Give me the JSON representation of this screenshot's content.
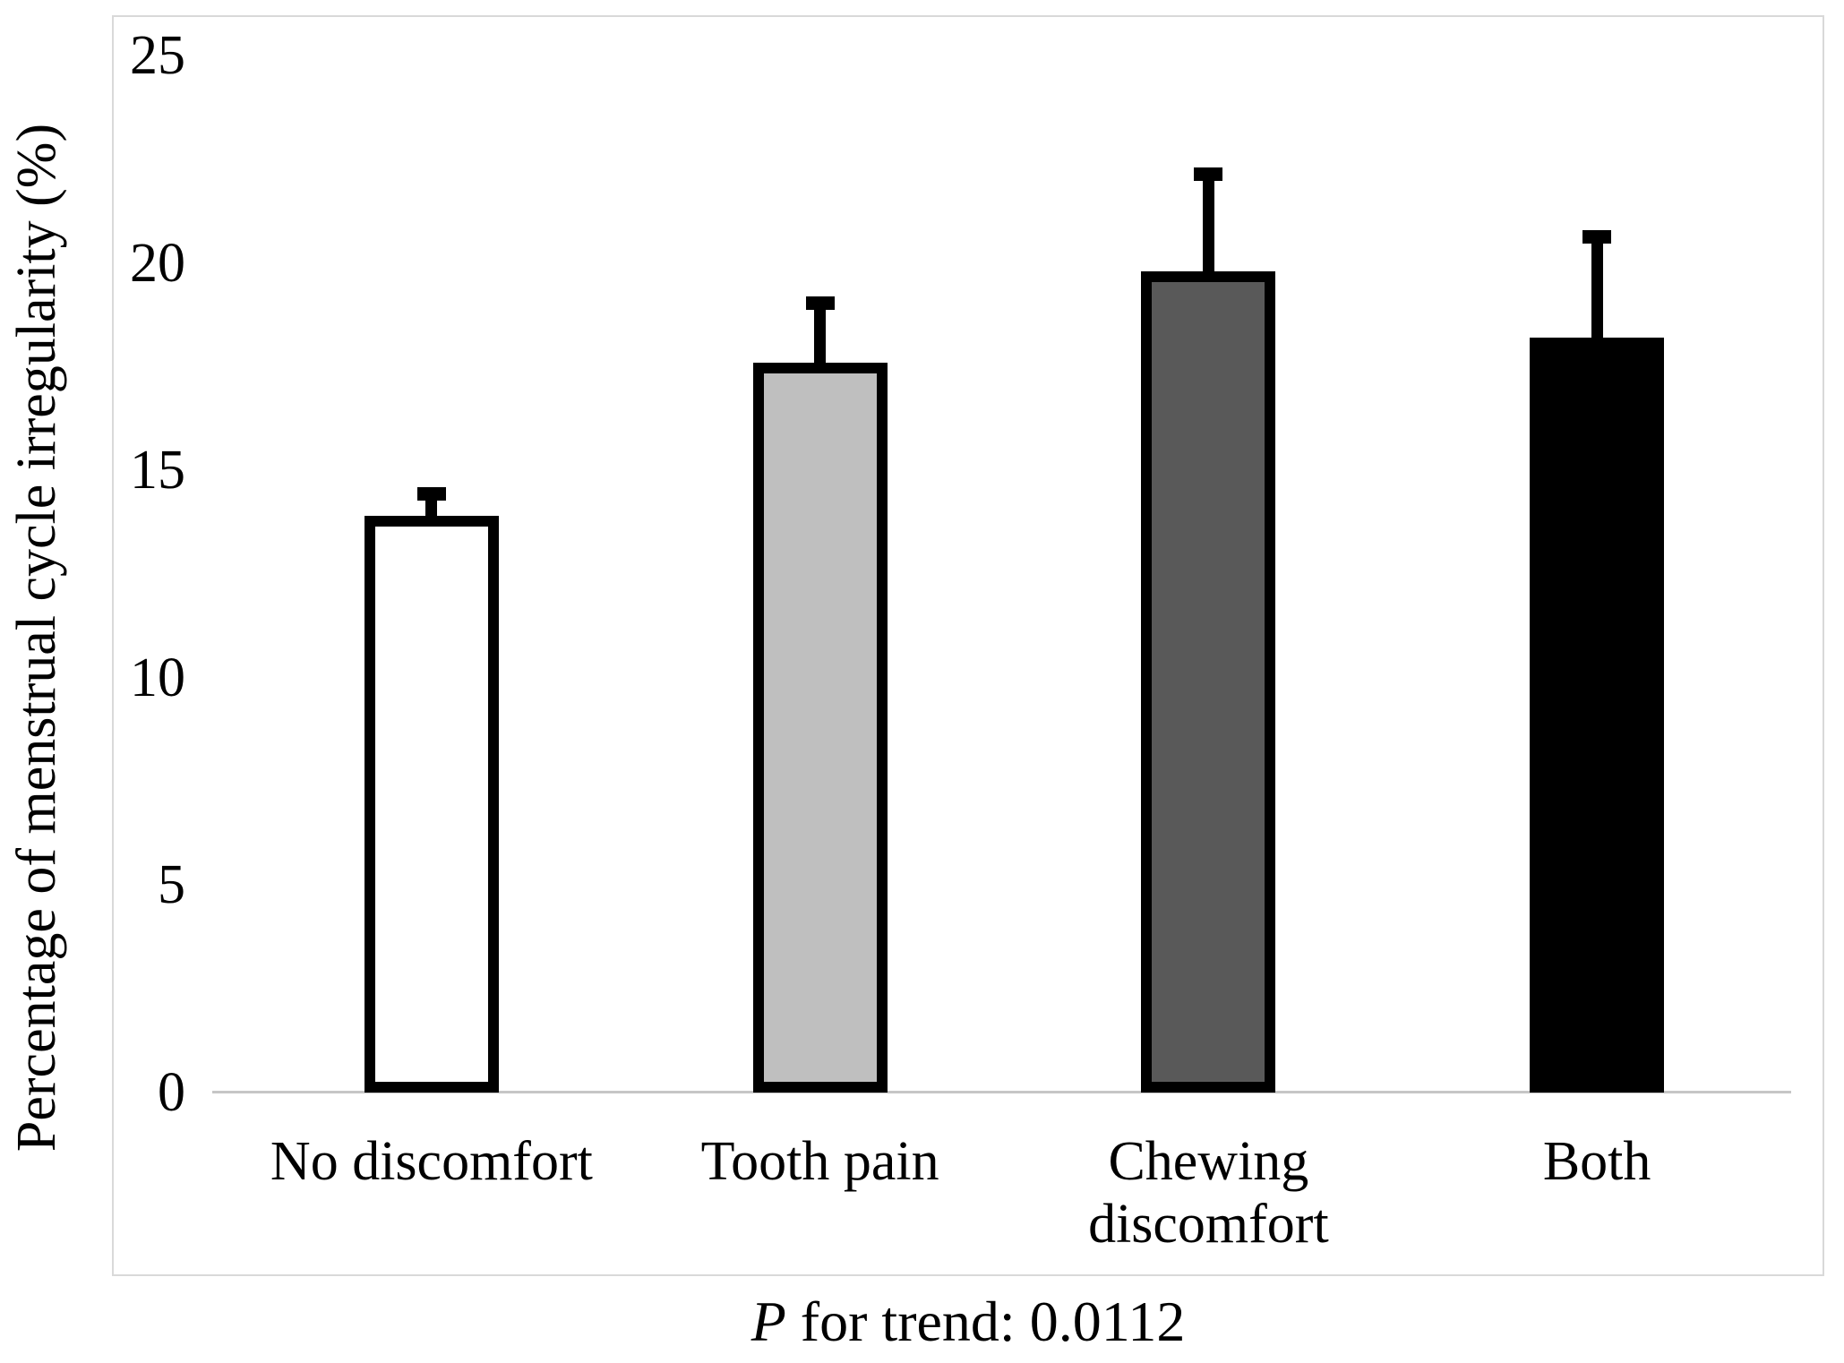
{
  "figure": {
    "background": "#ffffff",
    "plot_border_color": "#d9d9d9",
    "axis_line_color": "#c6c6c6",
    "text_color": "#000000"
  },
  "chart_data": {
    "type": "bar",
    "title": "",
    "xlabel": "",
    "ylabel": "Percentage of menstrual cycle irregularity (%)",
    "ylim": [
      0,
      25
    ],
    "yticks": [
      "25",
      "20",
      "15",
      "10",
      "5",
      "0"
    ],
    "ytick_values": [
      25,
      20,
      15,
      10,
      5,
      0
    ],
    "grid": false,
    "legend": "none",
    "categories": [
      "No discomfort",
      "Tooth pain",
      "Chewing discomfort",
      "Both"
    ],
    "values": [
      13.9,
      17.6,
      19.8,
      18.2
    ],
    "error_upper": [
      0.7,
      1.6,
      2.5,
      2.6
    ],
    "bar_fill_colors": [
      "#ffffff",
      "#bfbfbf",
      "#595959",
      "#000000"
    ],
    "bar_outline_color": "#000000",
    "error_bar_color": "#000000"
  },
  "caption": {
    "p_label": "P",
    "rest": " for trend: 0.0112"
  }
}
